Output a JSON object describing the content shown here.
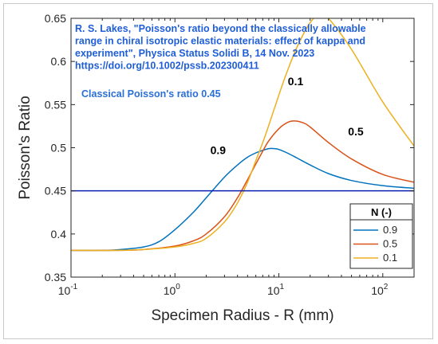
{
  "chart_data": {
    "type": "line",
    "x_scale": "log",
    "xlim": [
      0.1,
      200
    ],
    "ylim": [
      0.35,
      0.65
    ],
    "xlabel": "Specimen Radius - R (mm)",
    "ylabel": "Poisson's Ratio",
    "x_ticks": [
      0.1,
      1,
      10,
      100
    ],
    "x_tick_labels": [
      {
        "base": "10",
        "exp": "-1"
      },
      {
        "base": "10",
        "exp": "0"
      },
      {
        "base": "10",
        "exp": "1"
      },
      {
        "base": "10",
        "exp": "2"
      }
    ],
    "y_ticks": [
      0.35,
      0.4,
      0.45,
      0.5,
      0.55,
      0.6,
      0.65
    ],
    "y_tick_labels": [
      "0.35",
      "0.4",
      "0.45",
      "0.5",
      "0.55",
      "0.6",
      "0.65"
    ],
    "grid": false,
    "citation_lines": [
      "R. S. Lakes, \"Poisson's ratio beyond the classically allowable",
      "range in chiral isotropic elastic materials: effect of kappa and",
      "experiment\", Physica Status Solidi B, 14 Nov. 2023",
      "https://doi.org/10.1002/pssb.202300411"
    ],
    "reference_line": {
      "label": "Classical Poisson's ratio 0.45",
      "y": 0.45,
      "color": "#0a1fb0"
    },
    "legend": {
      "title": "N (-)",
      "position": "lower-right"
    },
    "series": [
      {
        "name": "0.9",
        "color": "#0072bd",
        "label": "0.9",
        "label_at": [
          2.6,
          0.4925
        ],
        "x": [
          0.1,
          0.2,
          0.3,
          0.5,
          0.7,
          1.0,
          1.5,
          2.0,
          3.0,
          4.0,
          5.0,
          6.0,
          7.0,
          8.0,
          9.0,
          10.0,
          12.0,
          15.0,
          20.0,
          30.0,
          50.0,
          100.0,
          200.0
        ],
        "y": [
          0.381,
          0.381,
          0.382,
          0.385,
          0.391,
          0.405,
          0.425,
          0.442,
          0.466,
          0.48,
          0.489,
          0.494,
          0.497,
          0.499,
          0.499,
          0.498,
          0.494,
          0.488,
          0.48,
          0.47,
          0.462,
          0.456,
          0.453
        ]
      },
      {
        "name": "0.5",
        "color": "#d95319",
        "label": "0.5",
        "label_at": [
          55,
          0.5145
        ],
        "x": [
          0.1,
          0.3,
          0.5,
          1.0,
          1.5,
          2.0,
          3.0,
          4.0,
          5.0,
          6.0,
          7.0,
          8.0,
          10.0,
          12.0,
          14.0,
          17.0,
          20.0,
          30.0,
          50.0,
          100.0,
          200.0
        ],
        "y": [
          0.381,
          0.381,
          0.382,
          0.386,
          0.392,
          0.4,
          0.42,
          0.442,
          0.463,
          0.481,
          0.496,
          0.508,
          0.522,
          0.529,
          0.531,
          0.529,
          0.524,
          0.506,
          0.487,
          0.469,
          0.46
        ]
      },
      {
        "name": "0.1",
        "color": "#edb120",
        "label": "0.1",
        "label_at": [
          14.5,
          0.5725
        ],
        "x": [
          0.1,
          0.3,
          0.5,
          1.0,
          1.5,
          2.0,
          3.0,
          4.0,
          5.0,
          6.0,
          7.0,
          8.0,
          10.0,
          12.0,
          15.0,
          20.0,
          25.0,
          30.0,
          50.0,
          100.0,
          200.0
        ],
        "y": [
          0.381,
          0.381,
          0.382,
          0.385,
          0.389,
          0.395,
          0.414,
          0.436,
          0.46,
          0.485,
          0.506,
          0.526,
          0.561,
          0.588,
          0.617,
          0.645,
          0.655,
          0.65,
          0.614,
          0.553,
          0.502
        ]
      }
    ]
  }
}
